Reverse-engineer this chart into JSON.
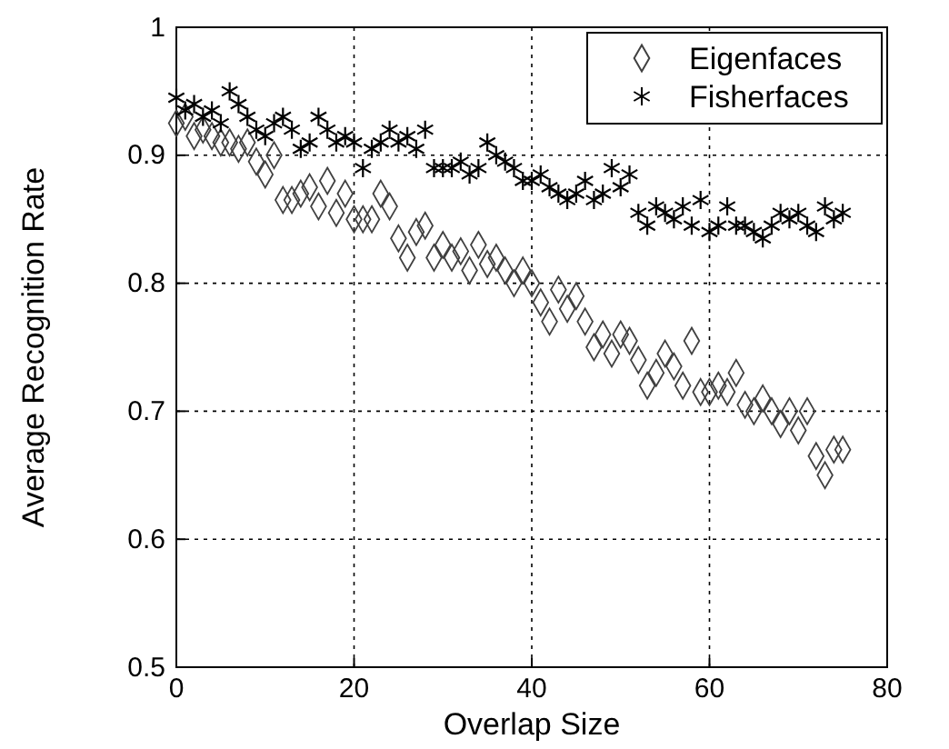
{
  "chart_data": {
    "type": "scatter",
    "xlabel": "Overlap Size",
    "ylabel": "Average Recognition Rate",
    "x": [
      0,
      1,
      2,
      3,
      4,
      5,
      6,
      7,
      8,
      9,
      10,
      11,
      12,
      13,
      14,
      15,
      16,
      17,
      18,
      19,
      20,
      21,
      22,
      23,
      24,
      25,
      26,
      27,
      28,
      29,
      30,
      31,
      32,
      33,
      34,
      35,
      36,
      37,
      38,
      39,
      40,
      41,
      42,
      43,
      44,
      45,
      46,
      47,
      48,
      49,
      50,
      51,
      52,
      53,
      54,
      55,
      56,
      57,
      58,
      59,
      60,
      61,
      62,
      63,
      64,
      65,
      66,
      67,
      68,
      69,
      70,
      71,
      72,
      73,
      74,
      75
    ],
    "series": [
      {
        "name": "Eigenfaces",
        "color": "#404040",
        "marker": "diamond",
        "values": [
          0.925,
          0.93,
          0.915,
          0.92,
          0.915,
          0.91,
          0.91,
          0.905,
          0.91,
          0.895,
          0.885,
          0.9,
          0.865,
          0.865,
          0.87,
          0.875,
          0.86,
          0.88,
          0.855,
          0.87,
          0.85,
          0.85,
          0.85,
          0.87,
          0.86,
          0.835,
          0.82,
          0.84,
          0.845,
          0.82,
          0.83,
          0.82,
          0.825,
          0.81,
          0.83,
          0.815,
          0.82,
          0.81,
          0.8,
          0.81,
          0.8,
          0.785,
          0.77,
          0.795,
          0.78,
          0.79,
          0.77,
          0.75,
          0.76,
          0.745,
          0.76,
          0.755,
          0.74,
          0.72,
          0.73,
          0.745,
          0.735,
          0.72,
          0.755,
          0.715,
          0.715,
          0.72,
          0.715,
          0.73,
          0.705,
          0.7,
          0.71,
          0.7,
          0.69,
          0.7,
          0.685,
          0.7,
          0.665,
          0.65,
          0.67,
          0.67
        ]
      },
      {
        "name": "Fisherfaces",
        "color": "#000000",
        "marker": "cross",
        "values": [
          0.945,
          0.935,
          0.94,
          0.93,
          0.935,
          0.925,
          0.95,
          0.94,
          0.93,
          0.92,
          0.915,
          0.925,
          0.93,
          0.92,
          0.905,
          0.91,
          0.93,
          0.92,
          0.91,
          0.915,
          0.91,
          0.89,
          0.905,
          0.91,
          0.92,
          0.91,
          0.915,
          0.905,
          0.92,
          0.89,
          0.89,
          0.89,
          0.895,
          0.885,
          0.89,
          0.91,
          0.9,
          0.895,
          0.89,
          0.88,
          0.88,
          0.885,
          0.875,
          0.87,
          0.865,
          0.87,
          0.88,
          0.865,
          0.87,
          0.89,
          0.875,
          0.885,
          0.855,
          0.845,
          0.86,
          0.855,
          0.85,
          0.86,
          0.845,
          0.865,
          0.84,
          0.845,
          0.86,
          0.845,
          0.845,
          0.84,
          0.835,
          0.845,
          0.855,
          0.85,
          0.855,
          0.845,
          0.84,
          0.86,
          0.85,
          0.855
        ]
      }
    ],
    "xlim": [
      0,
      80
    ],
    "xticks": [
      0,
      20,
      40,
      60,
      80
    ],
    "ylim": [
      0.5,
      1
    ],
    "yticks": [
      0.5,
      0.6,
      0.7,
      0.8,
      0.9,
      1
    ],
    "grid": true,
    "legend": "top right"
  }
}
